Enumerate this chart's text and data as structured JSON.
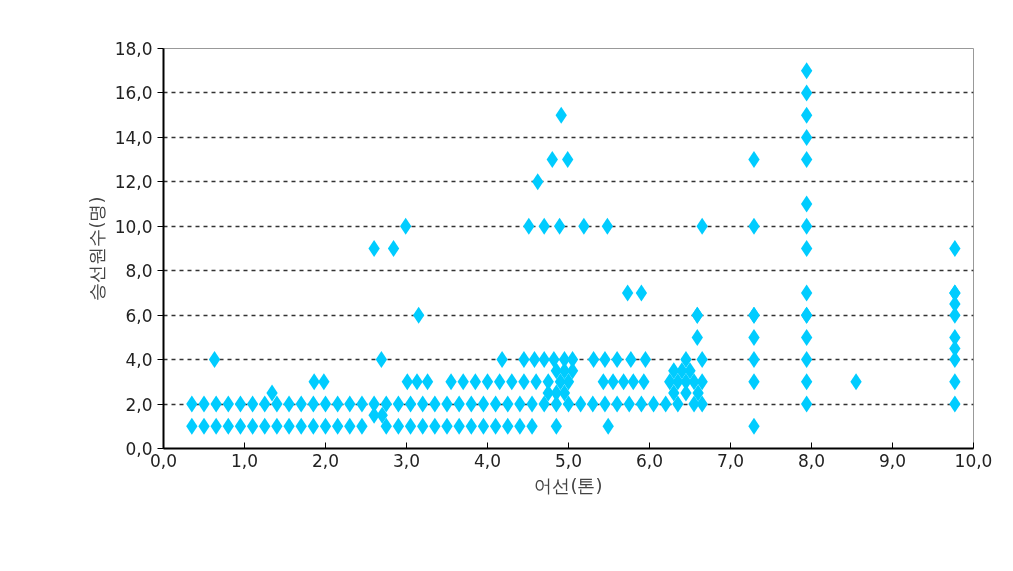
{
  "chart_data": {
    "type": "scatter",
    "xlabel": "어선(톤)",
    "ylabel": "승선원수(명)",
    "xlim": [
      0,
      10
    ],
    "ylim": [
      0,
      18
    ],
    "xticks": [
      {
        "value": 0,
        "label": "0,0"
      },
      {
        "value": 1,
        "label": "1,0"
      },
      {
        "value": 2,
        "label": "2,0"
      },
      {
        "value": 3,
        "label": "3,0"
      },
      {
        "value": 4,
        "label": "4,0"
      },
      {
        "value": 5,
        "label": "5,0"
      },
      {
        "value": 6,
        "label": "6,0"
      },
      {
        "value": 7,
        "label": "7,0"
      },
      {
        "value": 8,
        "label": "8,0"
      },
      {
        "value": 9,
        "label": "9,0"
      },
      {
        "value": 10,
        "label": "10,0"
      }
    ],
    "yticks": [
      {
        "value": 0,
        "label": "0,0"
      },
      {
        "value": 2,
        "label": "2,0"
      },
      {
        "value": 4,
        "label": "4,0"
      },
      {
        "value": 6,
        "label": "6,0"
      },
      {
        "value": 8,
        "label": "8,0"
      },
      {
        "value": 10,
        "label": "10,0"
      },
      {
        "value": 12,
        "label": "12,0"
      },
      {
        "value": 14,
        "label": "14,0"
      },
      {
        "value": 16,
        "label": "16,0"
      },
      {
        "value": 18,
        "label": "18,0"
      }
    ],
    "grid": "y",
    "marker": "diamond",
    "series": [
      {
        "color": "#00ccff",
        "x": [
          0.35,
          0.5,
          0.65,
          0.8,
          0.95,
          1.1,
          1.25,
          1.4,
          1.55,
          1.7,
          1.85,
          2.0,
          2.15,
          2.3,
          2.45,
          2.75,
          2.9,
          3.05,
          3.2,
          3.35,
          3.5,
          3.65,
          3.8,
          3.95,
          4.1,
          4.25,
          4.4,
          4.55,
          4.85,
          5.49,
          7.29,
          2.6,
          2.7,
          0.35,
          0.5,
          0.65,
          0.8,
          0.95,
          1.1,
          1.25,
          1.4,
          1.55,
          1.7,
          1.85,
          2.0,
          2.15,
          2.3,
          2.45,
          2.6,
          2.75,
          2.9,
          3.05,
          3.2,
          3.35,
          3.5,
          3.65,
          3.8,
          3.95,
          4.1,
          4.25,
          4.4,
          4.55,
          4.7,
          4.85,
          5.0,
          5.15,
          5.3,
          5.45,
          5.6,
          5.75,
          5.9,
          6.05,
          6.2,
          6.35,
          6.55,
          6.65,
          7.94,
          9.77,
          1.34,
          4.75,
          4.85,
          4.95,
          6.3,
          6.45,
          6.6,
          1.86,
          1.98,
          3.01,
          3.13,
          3.26,
          3.55,
          3.7,
          3.85,
          4.0,
          4.15,
          4.3,
          4.45,
          4.6,
          4.75,
          4.9,
          5.0,
          5.43,
          5.55,
          5.68,
          5.8,
          5.93,
          6.25,
          6.35,
          6.45,
          6.55,
          6.65,
          7.29,
          7.94,
          8.55,
          9.77,
          4.85,
          4.95,
          5.05,
          6.3,
          6.4,
          6.5,
          0.63,
          2.69,
          4.18,
          4.45,
          4.58,
          4.7,
          4.82,
          4.95,
          5.05,
          5.31,
          5.45,
          5.6,
          5.77,
          5.95,
          6.45,
          6.65,
          7.29,
          7.94,
          9.77,
          9.77,
          7.94,
          6.59,
          9.77,
          9.77,
          6.59,
          7.29,
          7.94,
          9.77,
          3.15,
          6.59,
          7.29,
          7.94,
          9.77,
          5.73,
          5.9,
          7.94,
          9.77,
          2.6,
          2.84,
          7.94,
          9.77,
          2.99,
          4.51,
          4.7,
          4.89,
          5.19,
          5.48,
          6.65,
          7.29,
          7.94,
          7.94,
          4.62,
          4.8,
          4.99,
          7.29,
          7.94,
          7.94,
          4.91,
          7.94,
          7.94,
          7.94,
          7.29
        ],
        "values": [
          1,
          1,
          1,
          1,
          1,
          1,
          1,
          1,
          1,
          1,
          1,
          1,
          1,
          1,
          1,
          1,
          1,
          1,
          1,
          1,
          1,
          1,
          1,
          1,
          1,
          1,
          1,
          1,
          1,
          1,
          1,
          1.5,
          1.5,
          2,
          2,
          2,
          2,
          2,
          2,
          2,
          2,
          2,
          2,
          2,
          2,
          2,
          2,
          2,
          2,
          2,
          2,
          2,
          2,
          2,
          2,
          2,
          2,
          2,
          2,
          2,
          2,
          2,
          2,
          2,
          2,
          2,
          2,
          2,
          2,
          2,
          2,
          2,
          2,
          2,
          2,
          2,
          2,
          2,
          2.5,
          2.5,
          2.5,
          2.5,
          2.5,
          2.5,
          2.5,
          3,
          3,
          3,
          3,
          3,
          3,
          3,
          3,
          3,
          3,
          3,
          3,
          3,
          3,
          3,
          3,
          3,
          3,
          3,
          3,
          3,
          3,
          3,
          3,
          3,
          3,
          3,
          3,
          3,
          3,
          3.5,
          3.5,
          3.5,
          3.5,
          3.5,
          3.5,
          4,
          4,
          4,
          4,
          4,
          4,
          4,
          4,
          4,
          4,
          4,
          4,
          4,
          4,
          4,
          4,
          4,
          4,
          4,
          4.5,
          5,
          5,
          5,
          6,
          6,
          6,
          6,
          6.5,
          6,
          6,
          6,
          6,
          7,
          7,
          7,
          7,
          7,
          9,
          9,
          9,
          9,
          10,
          10,
          10,
          10,
          10,
          10,
          10,
          10,
          10,
          11,
          12,
          13,
          13,
          13,
          13,
          14,
          15,
          15,
          16,
          17,
          5
        ]
      }
    ]
  }
}
